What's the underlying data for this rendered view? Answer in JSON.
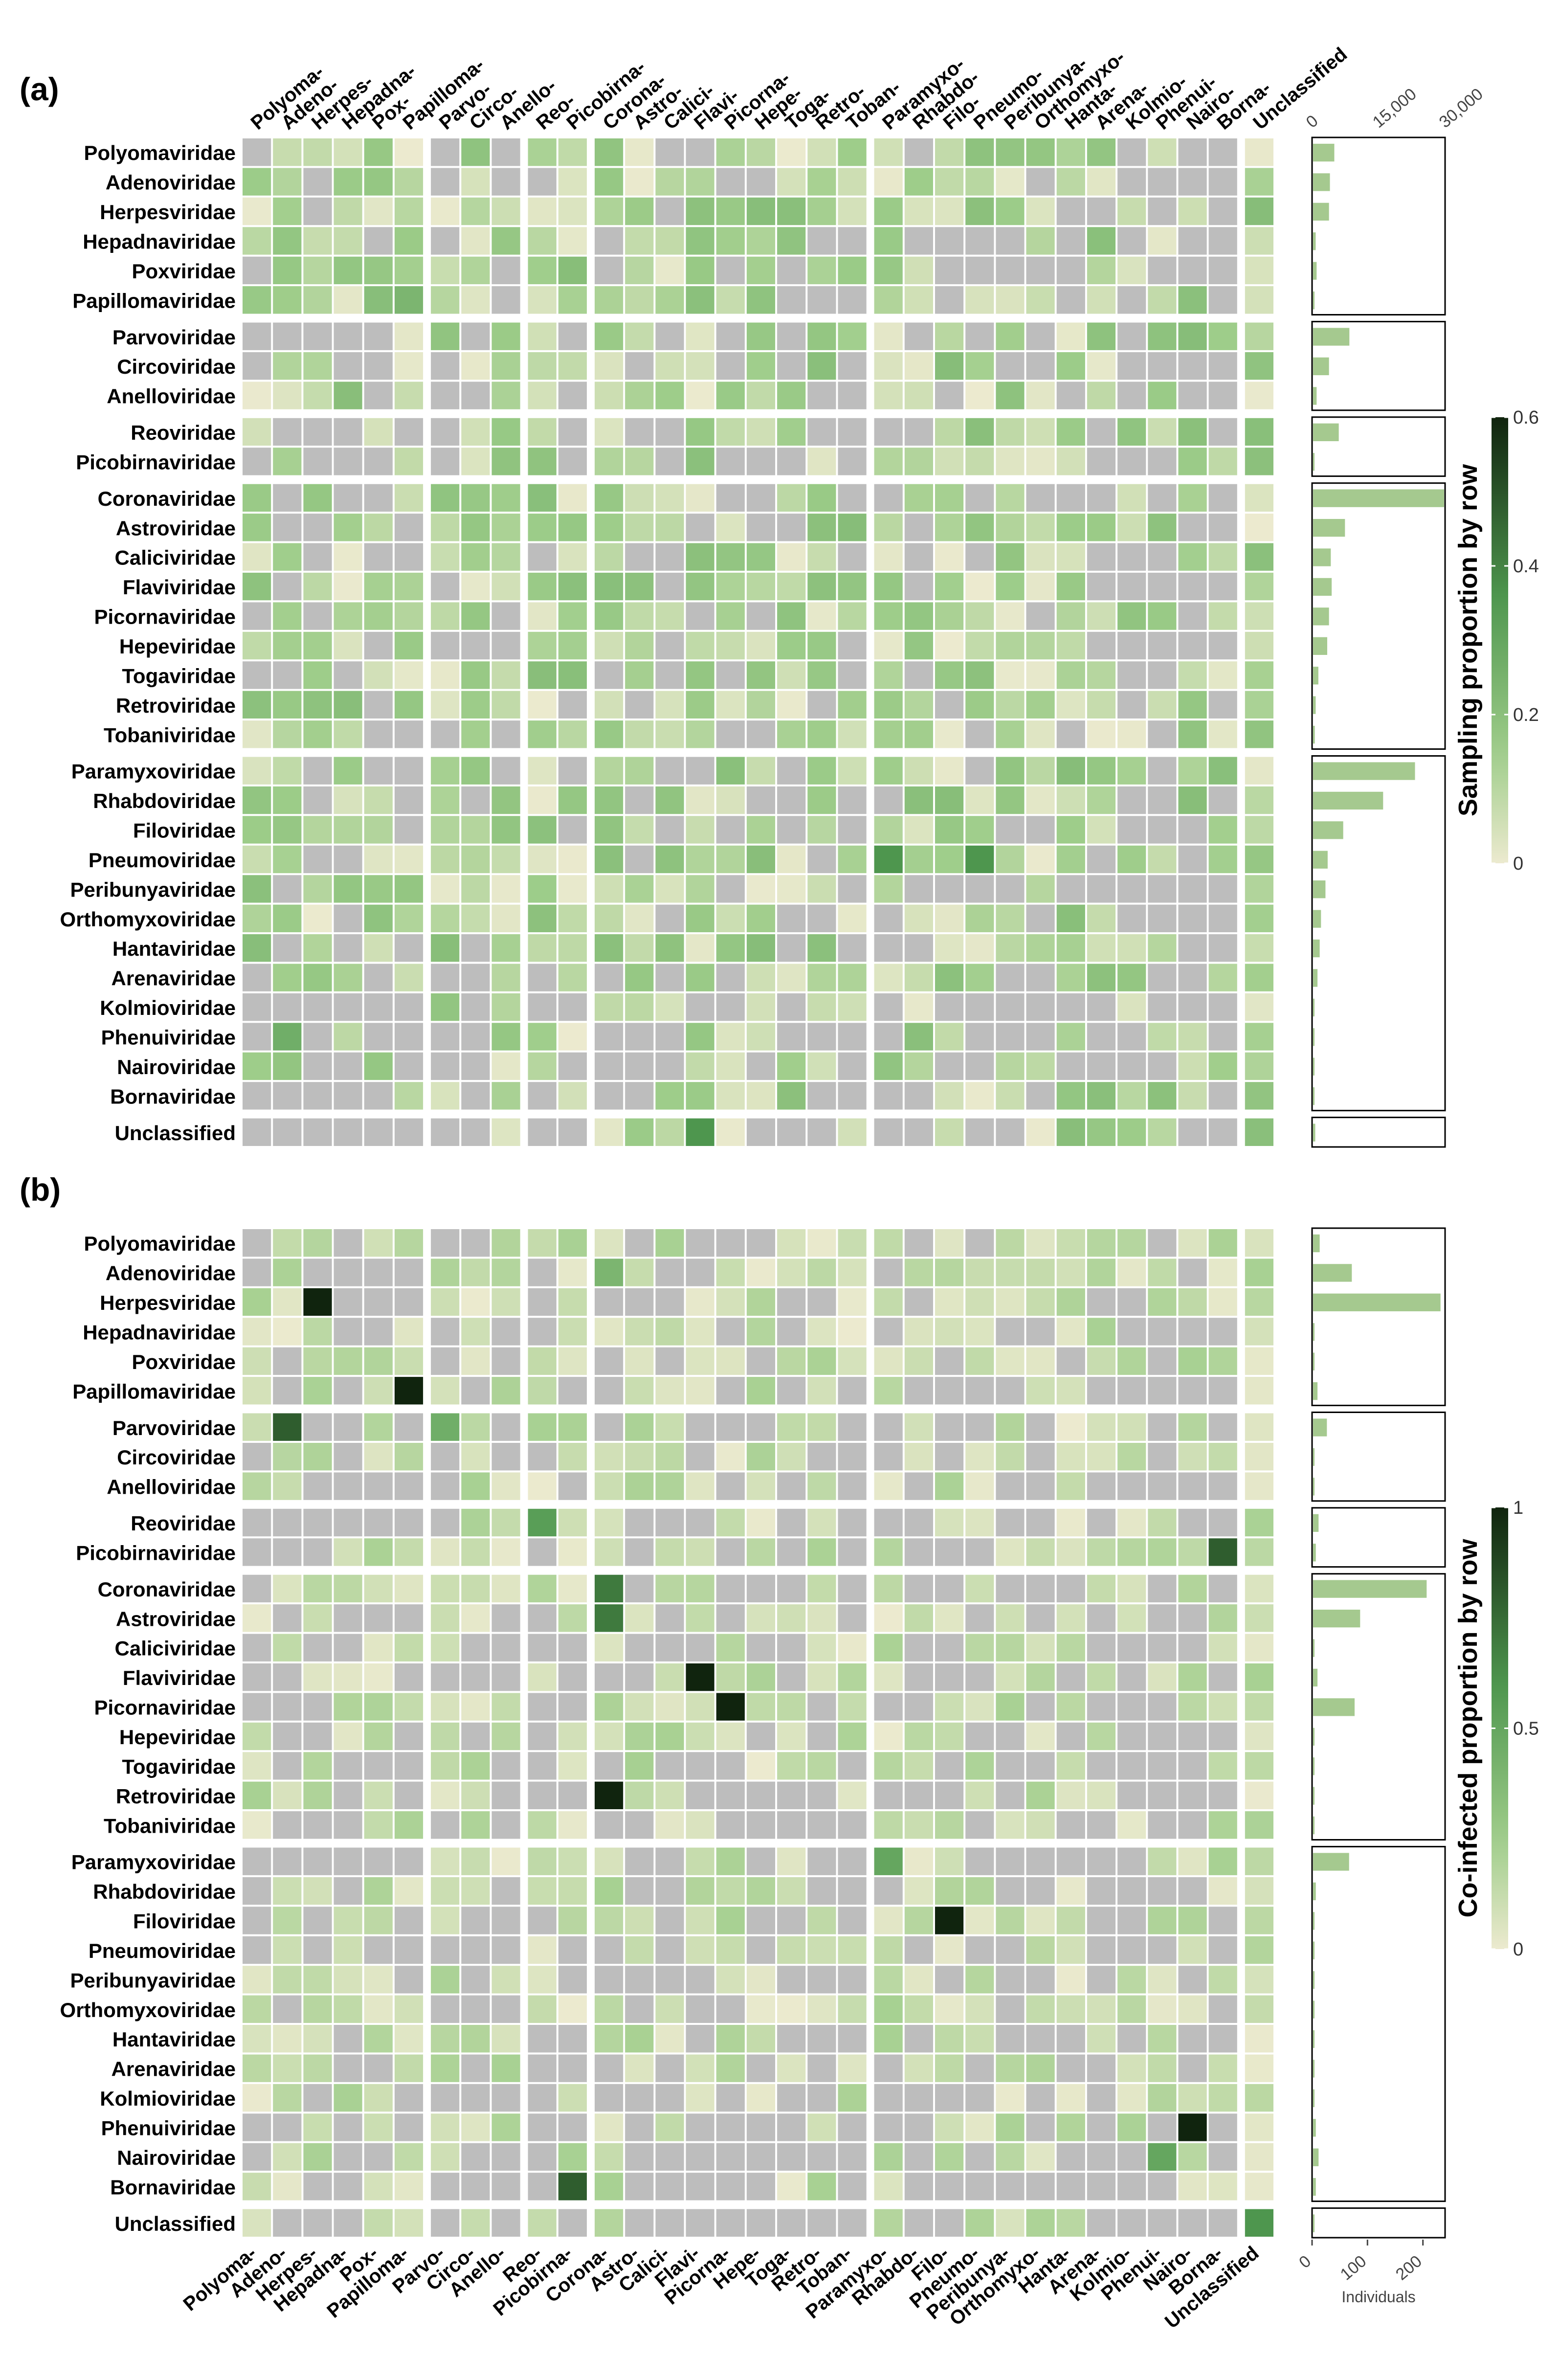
{
  "chart_data": [
    {
      "panel": "(a)",
      "type": "heatmap",
      "rows": [
        "Polyomaviridae",
        "Adenoviridae",
        "Herpesviridae",
        "Hepadnaviridae",
        "Poxviridae",
        "Papillomaviridae",
        "Parvoviridae",
        "Circoviridae",
        "Anelloviridae",
        "Reoviridae",
        "Picobirnaviridae",
        "Coronaviridae",
        "Astroviridae",
        "Caliciviridae",
        "Flaviviridae",
        "Picornaviridae",
        "Hepeviridae",
        "Togaviridae",
        "Retroviridae",
        "Tobaniviridae",
        "Paramyxoviridae",
        "Rhabdoviridae",
        "Filoviridae",
        "Pneumoviridae",
        "Peribunyaviridae",
        "Orthomyxoviridae",
        "Hantaviridae",
        "Arenaviridae",
        "Kolmioviridae",
        "Phenuiviridae",
        "Nairoviridae",
        "Bornaviridae",
        "Unclassified"
      ],
      "columns": [
        "Polyoma-",
        "Adeno-",
        "Herpes-",
        "Hepadna-",
        "Pox-",
        "Papilloma-",
        "Parvo-",
        "Circo-",
        "Anello-",
        "Reo-",
        "Picobirna-",
        "Corona-",
        "Astro-",
        "Calici-",
        "Flavi-",
        "Picorna-",
        "Hepe-",
        "Toga-",
        "Retro-",
        "Toban-",
        "Paramyxo-",
        "Rhabdo-",
        "Filo-",
        "Pneumo-",
        "Peribunya-",
        "Orthomyxo-",
        "Hanta-",
        "Arena-",
        "Kolmio-",
        "Phenui-",
        "Nairo-",
        "Borna-",
        "Unclassified"
      ],
      "colorbar": {
        "title": "Sampling proportion by row",
        "ticks": [
          "0",
          "0.2",
          "0.4",
          "0.6"
        ],
        "max": 0.6
      },
      "side_bars": {
        "values": [
          4800,
          3800,
          3600,
          600,
          800,
          200,
          8200,
          3600,
          800,
          5800,
          200,
          33000,
          7200,
          4000,
          4200,
          3600,
          3200,
          1200,
          600,
          400,
          23000,
          15800,
          6800,
          3300,
          2800,
          1800,
          1500,
          1000,
          300,
          200,
          200,
          200,
          500
        ],
        "axis_max": 30000,
        "ticks": [
          "0",
          "15,000",
          "30,000"
        ],
        "tick_values": [
          0,
          15000,
          30000
        ]
      }
    },
    {
      "panel": "(b)",
      "type": "heatmap",
      "rows": [
        "Polyomaviridae",
        "Adenoviridae",
        "Herpesviridae",
        "Hepadnaviridae",
        "Poxviridae",
        "Papillomaviridae",
        "Parvoviridae",
        "Circoviridae",
        "Anelloviridae",
        "Reoviridae",
        "Picobirnaviridae",
        "Coronaviridae",
        "Astroviridae",
        "Caliciviridae",
        "Flaviviridae",
        "Picornaviridae",
        "Hepeviridae",
        "Togaviridae",
        "Retroviridae",
        "Tobaniviridae",
        "Paramyxoviridae",
        "Rhabdoviridae",
        "Filoviridae",
        "Pneumoviridae",
        "Peribunyaviridae",
        "Orthomyxoviridae",
        "Hantaviridae",
        "Arenaviridae",
        "Kolmioviridae",
        "Phenuiviridae",
        "Nairoviridae",
        "Bornaviridae",
        "Unclassified"
      ],
      "columns": [
        "Polyoma-",
        "Adeno-",
        "Herpes-",
        "Hepadna-",
        "Pox-",
        "Papilloma-",
        "Parvo-",
        "Circo-",
        "Anello-",
        "Reo-",
        "Picobirna-",
        "Corona-",
        "Astro-",
        "Calici-",
        "Flavi-",
        "Picorna-",
        "Hepe-",
        "Toga-",
        "Retro-",
        "Toban-",
        "Paramyxo-",
        "Rhabdo-",
        "Filo-",
        "Pneumo-",
        "Peribunya-",
        "Orthomyxo-",
        "Hanta-",
        "Arena-",
        "Kolmio-",
        "Phenui-",
        "Nairo-",
        "Borna-",
        "Unclassified"
      ],
      "colorbar": {
        "title": "Co-infected proportion by row",
        "ticks": [
          "0",
          "0.5",
          "1"
        ],
        "max": 1
      },
      "side_bars": {
        "values": [
          12,
          70,
          230,
          2,
          2,
          8,
          25,
          2,
          2,
          10,
          5,
          205,
          85,
          2,
          8,
          75,
          2,
          2,
          2,
          2,
          65,
          5,
          2,
          2,
          2,
          2,
          2,
          2,
          2,
          5,
          10,
          5,
          2
        ],
        "axis_max": 240,
        "ticks": [
          "0",
          "100",
          "200"
        ],
        "tick_values": [
          0,
          100,
          200
        ],
        "xlabel": "Individuals"
      }
    }
  ]
}
